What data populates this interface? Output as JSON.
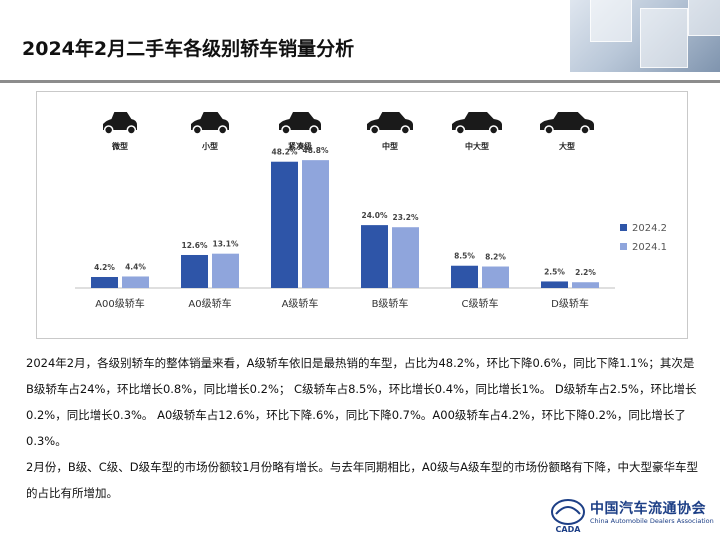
{
  "page": {
    "title": "2024年2月二手车各级别轿车销量分析"
  },
  "car_types": [
    "微型",
    "小型",
    "紧凑级",
    "中型",
    "中大型",
    "大型"
  ],
  "chart_data": {
    "type": "bar",
    "categories": [
      "A00级轿车",
      "A0级轿车",
      "A级轿车",
      "B级轿车",
      "C级轿车",
      "D级轿车"
    ],
    "series": [
      {
        "name": "2024.2",
        "values": [
          4.2,
          12.6,
          48.2,
          24.0,
          8.5,
          2.5
        ],
        "labels": [
          "4.2%",
          "12.6%",
          "48.2%",
          "24.0%",
          "8.5%",
          "2.5%"
        ],
        "color": "#2e55a8"
      },
      {
        "name": "2024.1",
        "values": [
          4.4,
          13.1,
          48.8,
          23.2,
          8.2,
          2.2
        ],
        "labels": [
          "4.4%",
          "13.1%",
          "48.8%",
          "23.2%",
          "8.2%",
          "2.2%"
        ],
        "color": "#8fa5dc"
      }
    ],
    "ylim": [
      0,
      60
    ],
    "legend_position": "right"
  },
  "body": {
    "paragraph1": "2024年2月，各级别轿车的整体销量来看，A级轿车依旧是最热销的车型，占比为48.2%，环比下降0.6%，同比下降1.1%；其次是B级轿车占24%，环比增长0.8%，同比增长0.2%； C级轿车占8.5%，环比增长0.4%，同比增长1%。 D级轿车占2.5%，环比增长0.2%，同比增长0.3%。 A0级轿车占12.6%，环比下降.6%，同比下降0.7%。A00级轿车占4.2%，环比下降0.2%，同比增长了0.3%。",
    "paragraph2": "2月份，B级、C级、D级车型的市场份额较1月份略有增长。与去年同期相比，A0级与A级车型的市场份额略有下降，中大型豪华车型的占比有所增加。"
  },
  "logo": {
    "name": "中国汽车流通协会",
    "en": "China Automobile Dealers Association",
    "mark_text": "CADA"
  }
}
